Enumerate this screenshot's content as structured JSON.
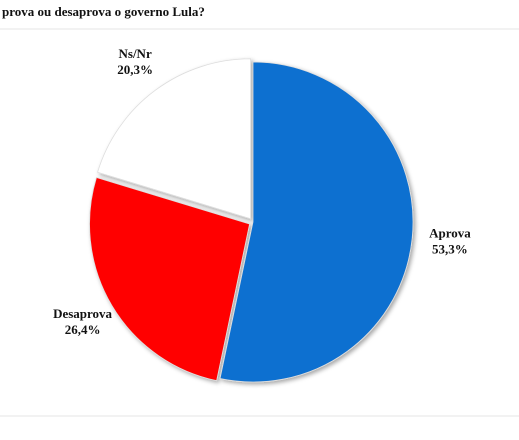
{
  "chart_data": {
    "type": "pie",
    "title": "prova ou desaprova o governo Lula?",
    "categories": [
      "Aprova",
      "Desaprova",
      "Ns/Nr"
    ],
    "values": [
      53.3,
      26.4,
      20.3
    ],
    "value_labels": [
      "53,3%",
      "26,4%",
      "20,3%"
    ],
    "colors": [
      "#0f70d0",
      "#ff0000",
      "#ffffff"
    ]
  }
}
